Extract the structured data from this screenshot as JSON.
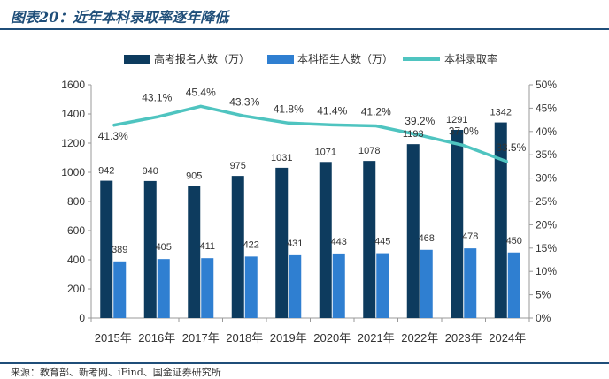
{
  "header": {
    "title": "图表20：近年本科录取率逐年降低"
  },
  "footer": {
    "source": "来源：教育部、新考网、iFind、国金证券研究所"
  },
  "colors": {
    "exam_bar": "#0d3b5e",
    "admit_bar": "#2f7fd1",
    "rate_line": "#4fc4c0",
    "axis": "#999999",
    "text": "#333333"
  },
  "chart_data": {
    "type": "bar+line",
    "categories": [
      "2015年",
      "2016年",
      "2017年",
      "2018年",
      "2019年",
      "2020年",
      "2021年",
      "2022年",
      "2023年",
      "2024年"
    ],
    "series": [
      {
        "name": "高考报名人数（万）",
        "type": "bar",
        "axis": "left",
        "values": [
          942,
          940,
          905,
          975,
          1031,
          1071,
          1078,
          1193,
          1291,
          1342
        ],
        "labels": [
          "942",
          "940",
          "905",
          "975",
          "1031",
          "1071",
          "1078",
          "1193",
          "1291",
          "1342"
        ]
      },
      {
        "name": "本科招生人数（万）",
        "type": "bar",
        "axis": "left",
        "values": [
          389,
          405,
          411,
          422,
          431,
          443,
          445,
          468,
          478,
          450
        ],
        "labels": [
          "389",
          "405",
          "411",
          "422",
          "431",
          "443",
          "445",
          "468",
          "478",
          "450"
        ]
      },
      {
        "name": "本科录取率",
        "type": "line",
        "axis": "right",
        "values": [
          41.3,
          43.1,
          45.4,
          43.3,
          41.8,
          41.4,
          41.2,
          39.2,
          37.0,
          33.5
        ],
        "labels": [
          "41.3%",
          "43.1%",
          "45.4%",
          "43.3%",
          "41.8%",
          "41.4%",
          "41.2%",
          "39.2%",
          "37.0%",
          "33.5%"
        ]
      }
    ],
    "left_axis": {
      "ylim": [
        0,
        1600
      ],
      "ticks": [
        "0",
        "200",
        "400",
        "600",
        "800",
        "1000",
        "1200",
        "1400",
        "1600"
      ]
    },
    "right_axis": {
      "ylim": [
        0,
        50
      ],
      "ticks": [
        "0%",
        "5%",
        "10%",
        "15%",
        "20%",
        "25%",
        "30%",
        "35%",
        "40%",
        "45%",
        "50%"
      ]
    },
    "legend_position": "top",
    "grid": false
  }
}
